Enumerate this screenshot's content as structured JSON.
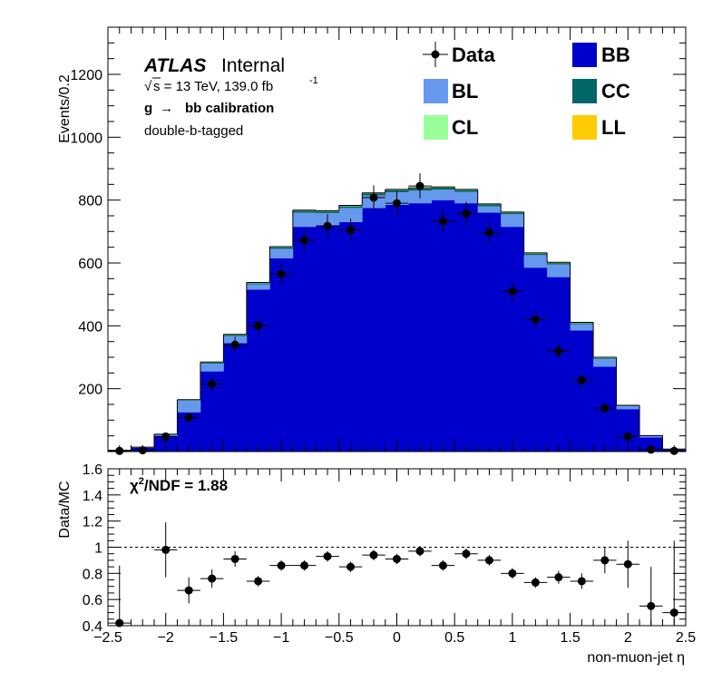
{
  "chart_data": [
    {
      "type": "bar",
      "stacked": true,
      "ylabel": "Events/0.2",
      "xlim": [
        -2.5,
        2.5
      ],
      "ylim": [
        0,
        1350
      ],
      "yticks": [
        200,
        400,
        600,
        800,
        1000,
        1200
      ],
      "bin_edges": [
        -2.5,
        -2.3,
        -2.1,
        -1.9,
        -1.7,
        -1.5,
        -1.3,
        -1.1,
        -0.9,
        -0.7,
        -0.5,
        -0.3,
        -0.1,
        0.1,
        0.3,
        0.5,
        0.7,
        0.9,
        1.1,
        1.3,
        1.5,
        1.7,
        1.9,
        2.1,
        2.3,
        2.5
      ],
      "series": [
        {
          "name": "BB",
          "color": "#0000cc",
          "values": [
            3,
            12,
            48,
            125,
            255,
            345,
            515,
            615,
            715,
            720,
            730,
            775,
            785,
            790,
            800,
            790,
            760,
            715,
            585,
            555,
            385,
            270,
            135,
            45,
            7
          ]
        },
        {
          "name": "BL",
          "color": "#6699ee",
          "values": [
            1,
            2,
            6,
            37,
            25,
            22,
            17,
            30,
            45,
            38,
            45,
            40,
            40,
            40,
            33,
            36,
            20,
            40,
            40,
            40,
            20,
            25,
            10,
            5,
            1
          ]
        },
        {
          "name": "CC",
          "color": "#006666",
          "values": [
            0,
            0,
            1,
            2,
            3,
            4,
            4,
            5,
            6,
            6,
            6,
            6,
            7,
            7,
            7,
            6,
            6,
            5,
            5,
            5,
            4,
            3,
            2,
            1,
            0
          ]
        },
        {
          "name": "CL",
          "color": "#99ff99",
          "values": [
            0,
            0,
            0,
            1,
            1,
            1,
            1,
            1,
            1,
            1,
            1,
            1,
            1,
            1,
            1,
            1,
            1,
            1,
            1,
            1,
            1,
            1,
            0,
            0,
            0
          ]
        },
        {
          "name": "LL",
          "color": "#ffcc00",
          "values": [
            0,
            0,
            0,
            0,
            1,
            1,
            1,
            1,
            1,
            1,
            1,
            1,
            1,
            1,
            1,
            1,
            1,
            1,
            1,
            1,
            1,
            1,
            0,
            0,
            0
          ]
        }
      ],
      "data": {
        "name": "Data",
        "x": [
          -2.4,
          -2.2,
          -2.0,
          -1.8,
          -1.6,
          -1.4,
          -1.2,
          -1.0,
          -0.8,
          -0.6,
          -0.4,
          -0.2,
          0.0,
          0.2,
          0.4,
          0.6,
          0.8,
          1.0,
          1.2,
          1.4,
          1.6,
          1.8,
          2.0,
          2.2,
          2.4
        ],
        "y": [
          2,
          4,
          48,
          108,
          215,
          340,
          400,
          565,
          672,
          718,
          705,
          808,
          790,
          845,
          733,
          757,
          697,
          510,
          420,
          320,
          227,
          138,
          48,
          6,
          2
        ],
        "yerr": [
          2,
          3,
          10,
          14,
          20,
          25,
          27,
          32,
          35,
          37,
          36,
          39,
          38,
          40,
          37,
          38,
          36,
          31,
          28,
          25,
          21,
          16,
          10,
          3,
          2
        ]
      },
      "annotations": {
        "atlas": "ATLAS",
        "atlas_suffix": "Internal",
        "energy_sqrt": "√",
        "energy": "s = 13 TeV, 139.0 fb",
        "energy_exp": "-1",
        "calib_g": "g",
        "calib_arrow": "→",
        "calib_rest": "bb calibration",
        "selection": "double-b-tagged"
      }
    },
    {
      "type": "scatter",
      "xlabel": "non-muon-jet η",
      "ylabel": "Data/MC",
      "xlim": [
        -2.5,
        2.5
      ],
      "ylim": [
        0.4,
        1.6
      ],
      "xticks": [
        -2.5,
        -2,
        -1.5,
        -1,
        -0.5,
        0,
        0.5,
        1,
        1.5,
        2,
        2.5
      ],
      "xtick_labels": [
        "−2.5",
        "−2",
        "−1.5",
        "−1",
        "−0.5",
        "0",
        "0.5",
        "1",
        "1.5",
        "2",
        "2.5"
      ],
      "yticks": [
        0.4,
        0.6,
        0.8,
        1,
        1.2,
        1.4,
        1.6
      ],
      "ytick_labels": [
        "0.4",
        "0.6",
        "0.8",
        "1",
        "1.2",
        "1.4",
        "1.6"
      ],
      "reference_line": 1,
      "x": [
        -2.4,
        -2.2,
        -2.0,
        -1.8,
        -1.6,
        -1.4,
        -1.2,
        -1.0,
        -0.8,
        -0.6,
        -0.4,
        -0.2,
        0.0,
        0.2,
        0.4,
        0.6,
        0.8,
        1.0,
        1.2,
        1.4,
        1.6,
        1.8,
        2.0,
        2.2,
        2.4
      ],
      "y": [
        0.42,
        null,
        0.98,
        0.67,
        0.76,
        0.91,
        0.74,
        0.86,
        0.86,
        0.93,
        0.85,
        0.94,
        0.91,
        0.97,
        0.86,
        0.95,
        0.9,
        0.8,
        0.73,
        0.77,
        0.74,
        0.9,
        0.87,
        0.55,
        0.5
      ],
      "yerr": [
        0.44,
        null,
        0.21,
        0.1,
        0.07,
        0.06,
        0.04,
        0.04,
        0.04,
        0.04,
        0.04,
        0.04,
        0.04,
        0.04,
        0.04,
        0.04,
        0.04,
        0.04,
        0.04,
        0.05,
        0.06,
        0.1,
        0.18,
        0.3,
        0.55
      ],
      "annotation": {
        "chi": "χ",
        "chi_sup": "2",
        "chi_rest": "/NDF = 1.88"
      }
    }
  ],
  "legend": [
    {
      "label": "Data",
      "kind": "marker"
    },
    {
      "label": "BB",
      "kind": "box",
      "color": "#0000cc"
    },
    {
      "label": "BL",
      "kind": "box",
      "color": "#6699ee"
    },
    {
      "label": "CC",
      "kind": "box",
      "color": "#006666"
    },
    {
      "label": "CL",
      "kind": "box",
      "color": "#99ff99"
    },
    {
      "label": "LL",
      "kind": "box",
      "color": "#ffcc00"
    }
  ]
}
